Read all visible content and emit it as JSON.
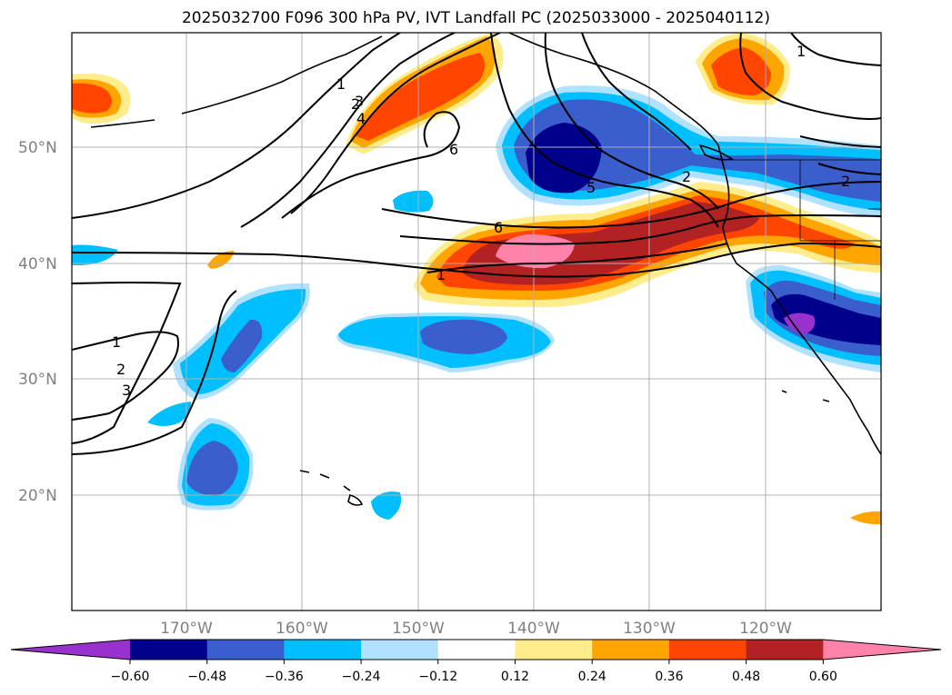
{
  "title": "2025032700 F096 300 hPa PV, IVT Landfall PC (2025033000 - 2025040112)",
  "lat_labels": [
    "50°N",
    "40°N",
    "30°N",
    "20°N"
  ],
  "lon_labels": [
    "170°W",
    "160°W",
    "150°W",
    "140°W",
    "130°W",
    "120°W"
  ],
  "colorbar": {
    "colors": [
      "#9932cc",
      "#00008b",
      "#3a5fcd",
      "#00bfff",
      "#b0e2ff",
      "#ffffff",
      "#ffec8b",
      "#ffa500",
      "#ff4500",
      "#b22222",
      "#ff82ab"
    ],
    "tick_labels": [
      "−0.60",
      "−0.48",
      "−0.36",
      "−0.24",
      "−0.12",
      "0.12",
      "0.24",
      "0.36",
      "0.48",
      "0.60"
    ]
  },
  "contour_labels": [
    "1",
    "2",
    "3",
    "4",
    "6",
    "5",
    "2",
    "6",
    "1",
    "1",
    "2",
    "3",
    "1",
    "2"
  ]
}
